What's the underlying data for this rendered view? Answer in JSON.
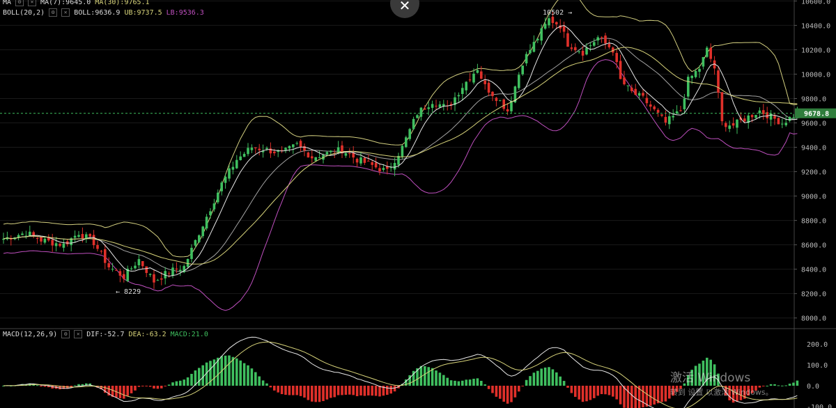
{
  "price_panel": {
    "ma_label": "MA",
    "ma7": "MA(7):9645.0",
    "ma30": "MA(30):9765.1",
    "boll_label": "BOLL(20,2)",
    "boll": "BOLL:9636.9",
    "ub": "UB:9737.5",
    "lb": "LB:9536.3",
    "last_price": "9678.8",
    "high_marker": "10502 →",
    "low_marker": "← 8229",
    "yticks": [
      "10600.0",
      "10400.0",
      "10200.0",
      "10000.0",
      "9800.0",
      "9600.0",
      "9400.0",
      "9200.0",
      "9000.0",
      "8800.0",
      "8600.0",
      "8400.0",
      "8200.0",
      "8000.0"
    ]
  },
  "macd_panel": {
    "label": "MACD(12,26,9)",
    "dif": "DIF:-52.7",
    "dea": "DEA:-63.2",
    "macd": "MACD:21.0",
    "yticks": [
      "200.0",
      "100.0",
      "0.0",
      "-100.0"
    ]
  },
  "colors": {
    "up": "#3fbf5f",
    "down": "#e0302a",
    "ma7": "#e8e8e8",
    "ma30": "#d8d47a",
    "boll_mid": "#e8e8e8",
    "boll_band": "#d4d080",
    "lb": "#c050c0",
    "last_price_bg": "#2f7d3c"
  },
  "watermark": {
    "line1": "激活 Windows",
    "line2": "转到 设置 以激活 Windows。"
  },
  "chart_data": {
    "type": "candlestick",
    "price_axis": {
      "min": 8000,
      "max": 10600
    },
    "macd_axis": {
      "min": -100,
      "max": 200
    },
    "high": 10502,
    "low": 8229,
    "last": 9678.8,
    "close_path": [
      [
        0,
        8650
      ],
      [
        6,
        8700
      ],
      [
        10,
        8640
      ],
      [
        16,
        8600
      ],
      [
        20,
        8700
      ],
      [
        24,
        8620
      ],
      [
        28,
        8420
      ],
      [
        32,
        8340
      ],
      [
        36,
        8480
      ],
      [
        40,
        8300
      ],
      [
        44,
        8380
      ],
      [
        48,
        8420
      ],
      [
        52,
        8700
      ],
      [
        55,
        8900
      ],
      [
        58,
        9100
      ],
      [
        62,
        9300
      ],
      [
        66,
        9400
      ],
      [
        70,
        9380
      ],
      [
        74,
        9350
      ],
      [
        78,
        9420
      ],
      [
        82,
        9320
      ],
      [
        86,
        9350
      ],
      [
        90,
        9380
      ],
      [
        94,
        9300
      ],
      [
        98,
        9250
      ],
      [
        102,
        9200
      ],
      [
        106,
        9400
      ],
      [
        110,
        9680
      ],
      [
        114,
        9780
      ],
      [
        118,
        9720
      ],
      [
        122,
        9900
      ],
      [
        126,
        10050
      ],
      [
        128,
        9900
      ],
      [
        132,
        9780
      ],
      [
        134,
        9700
      ],
      [
        138,
        10100
      ],
      [
        142,
        10300
      ],
      [
        145,
        10450
      ],
      [
        148,
        10400
      ],
      [
        150,
        10250
      ],
      [
        154,
        10180
      ],
      [
        158,
        10300
      ],
      [
        162,
        10200
      ],
      [
        164,
        9950
      ],
      [
        167,
        9850
      ],
      [
        170,
        9800
      ],
      [
        173,
        9700
      ],
      [
        176,
        9600
      ],
      [
        180,
        9700
      ],
      [
        182,
        9950
      ],
      [
        185,
        10050
      ],
      [
        187,
        10200
      ],
      [
        189,
        10050
      ],
      [
        191,
        9600
      ],
      [
        194,
        9580
      ],
      [
        198,
        9650
      ],
      [
        201,
        9700
      ],
      [
        204,
        9650
      ],
      [
        207,
        9600
      ],
      [
        211,
        9680
      ]
    ]
  }
}
